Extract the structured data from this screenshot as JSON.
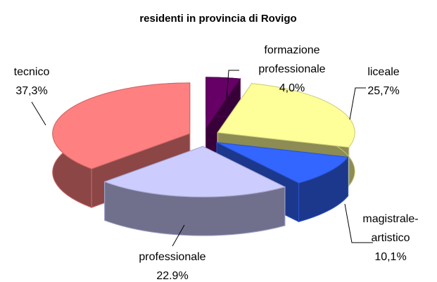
{
  "chart_data": {
    "type": "pie3d",
    "title": "residenti in provincia di Rovigo",
    "categories": [
      "formazione professionale",
      "liceale",
      "magistrale-artistico",
      "professionale",
      "tecnico"
    ],
    "values": [
      4.0,
      25.7,
      10.1,
      22.9,
      37.3
    ],
    "value_labels": [
      "4,0%",
      "25,7%",
      "10,1%",
      "22.9%",
      "37,3%"
    ],
    "colors": [
      "#660066",
      "#ffff99",
      "#3366ff",
      "#ccccff",
      "#ff8080"
    ]
  }
}
